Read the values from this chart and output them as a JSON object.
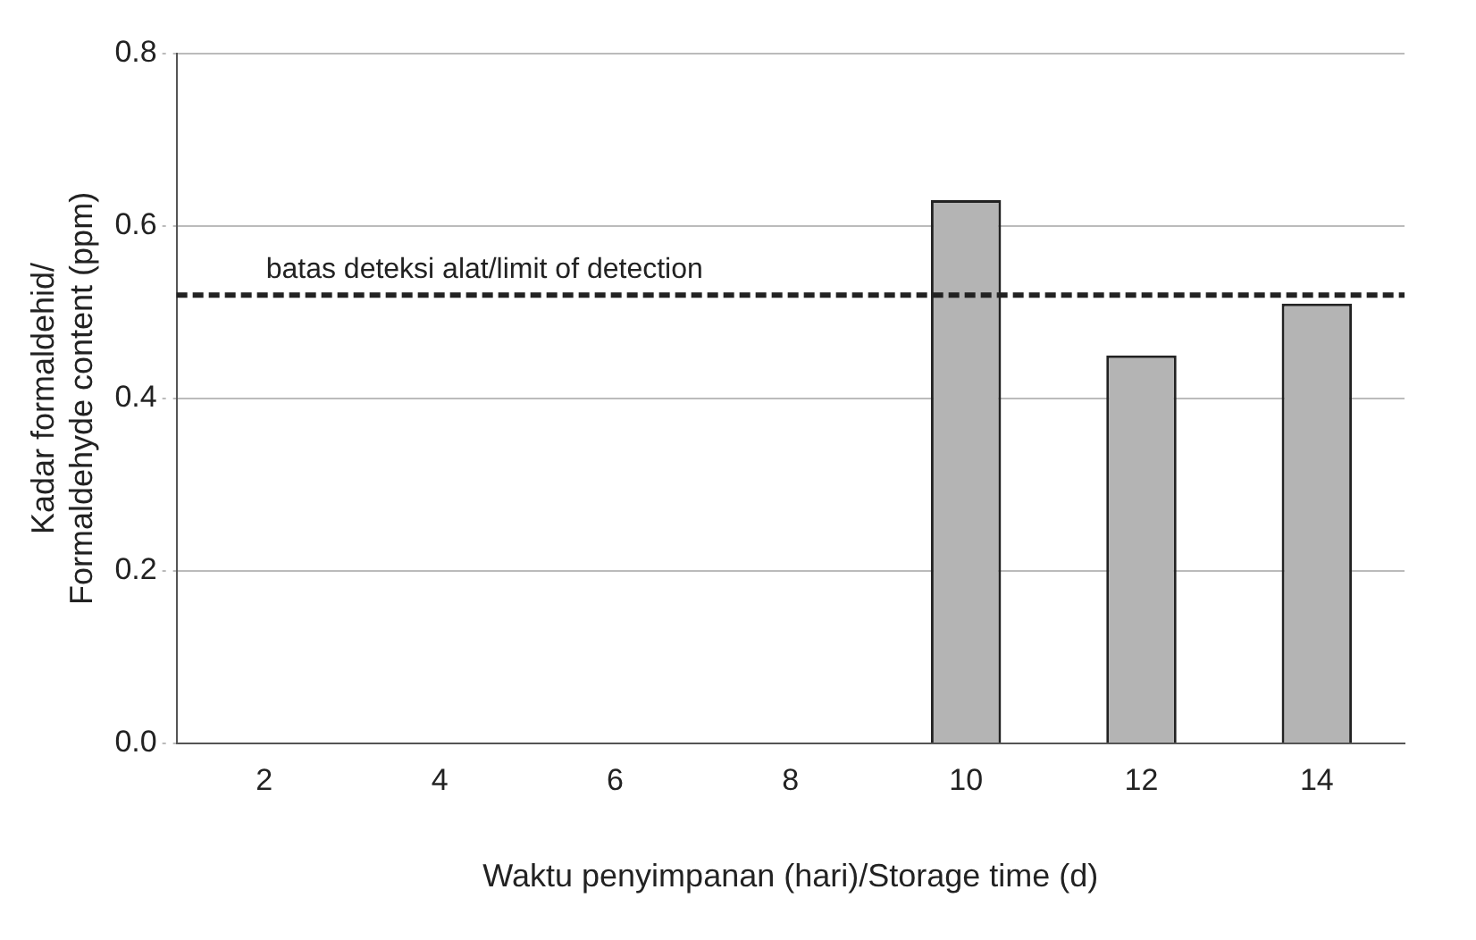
{
  "chart_data": {
    "type": "bar",
    "xlabel": "Waktu penyimpanan (hari)/Storage time (d)",
    "ylabel": "Kadar formaldehid/Formaldehyde content (ppm)",
    "categories": [
      "2",
      "4",
      "6",
      "8",
      "10",
      "12",
      "14"
    ],
    "values": [
      0,
      0,
      0,
      0,
      0.63,
      0.45,
      0.51
    ],
    "color": "#b4b4b4",
    "ylim": [
      0,
      0.8
    ],
    "yticks": [
      {
        "value": 0,
        "label": "0.0"
      },
      0.2,
      0.4,
      0.6,
      0.8
    ],
    "grid": "y",
    "ref_lines": [
      {
        "axis": "y",
        "value": 0.52,
        "label": "batas deteksi alat/limit of detection",
        "color": "#222222",
        "line_style": "dashed"
      }
    ]
  }
}
